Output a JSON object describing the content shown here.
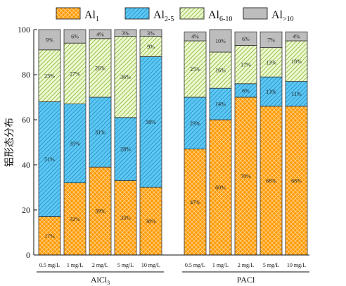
{
  "chart_data": {
    "type": "bar",
    "stacked": true,
    "ylabel": "铝形态分布",
    "ylim": [
      0,
      100
    ],
    "yticks": [
      0,
      20,
      40,
      60,
      80,
      100
    ],
    "grid": false,
    "legend_position": "top",
    "series": [
      {
        "key": "al1",
        "name": "Al",
        "sub": "1",
        "color": "#ff9900",
        "pattern": "crosshatch"
      },
      {
        "key": "al2",
        "name": "Al",
        "sub": "2-5",
        "color": "#5bc8f5",
        "pattern": "diagonal"
      },
      {
        "key": "al3",
        "name": "Al",
        "sub": "6-10",
        "color": "#d9f0a3",
        "pattern": "diagonal"
      },
      {
        "key": "al4",
        "name": "Al",
        "sub": ">10",
        "color": "#bdbdbd",
        "pattern": "solid"
      }
    ],
    "groups": [
      {
        "label": "AlCl",
        "label_sub": "3",
        "bars": [
          {
            "category": "0.5 mg/L",
            "values": [
              17,
              51,
              23,
              9
            ],
            "labels": [
              "17%",
              "51%",
              "23%",
              "9%"
            ]
          },
          {
            "category": "1 mg/L",
            "values": [
              32,
              35,
              27,
              6
            ],
            "labels": [
              "32%",
              "35%",
              "27%",
              "6%"
            ]
          },
          {
            "category": "2 mg/L",
            "values": [
              39,
              31,
              26,
              4
            ],
            "labels": [
              "39%",
              "31%",
              "26%",
              "4%"
            ]
          },
          {
            "category": "5 mg/L",
            "values": [
              33,
              28,
              36,
              3
            ],
            "labels": [
              "33%",
              "28%",
              "36%",
              "3%"
            ]
          },
          {
            "category": "10 mg/L",
            "values": [
              30,
              58,
              9,
              3
            ],
            "labels": [
              "30%",
              "58%",
              "9%",
              "3%"
            ]
          }
        ]
      },
      {
        "label": "PACl",
        "label_sub": "",
        "bars": [
          {
            "category": "0.5 mg/L",
            "values": [
              47,
              23,
              25,
              4
            ],
            "labels": [
              "47%",
              "23%",
              "25%",
              "4%"
            ]
          },
          {
            "category": "1 mg/L",
            "values": [
              60,
              14,
              16,
              10
            ],
            "labels": [
              "60%",
              "14%",
              "16%",
              "10%"
            ]
          },
          {
            "category": "2 mg/L",
            "values": [
              70,
              6,
              17,
              6
            ],
            "labels": [
              "70%",
              "6%",
              "17%",
              "6%"
            ]
          },
          {
            "category": "5 mg/L",
            "values": [
              66,
              13,
              13,
              7
            ],
            "labels": [
              "66%",
              "13%",
              "13%",
              "7%"
            ]
          },
          {
            "category": "10 mg/L",
            "values": [
              66,
              11,
              18,
              4
            ],
            "labels": [
              "66%",
              "11%",
              "18%",
              "4%"
            ]
          }
        ]
      }
    ]
  }
}
